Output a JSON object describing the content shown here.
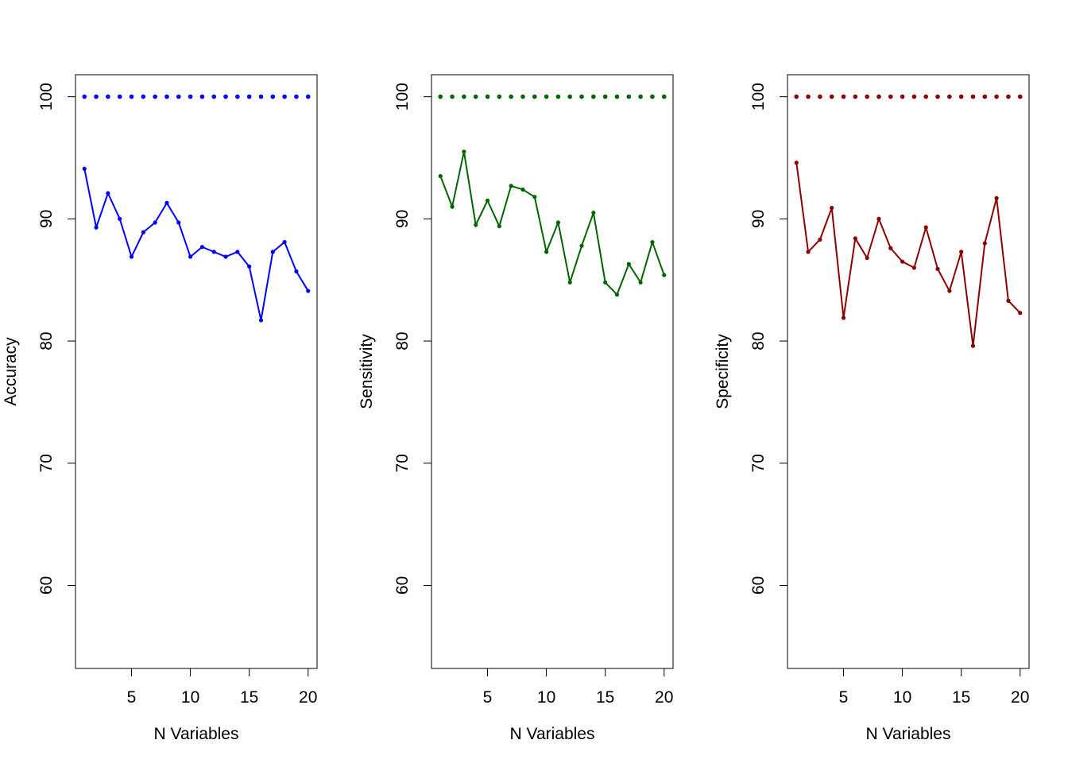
{
  "chart_data": [
    {
      "type": "line",
      "xlabel": "N Variables",
      "ylabel": "Accuracy",
      "color": "#0000ff",
      "x": [
        1,
        2,
        3,
        4,
        5,
        6,
        7,
        8,
        9,
        10,
        11,
        12,
        13,
        14,
        15,
        16,
        17,
        18,
        19,
        20
      ],
      "series": [
        {
          "style": "points",
          "values": [
            100,
            100,
            100,
            100,
            100,
            100,
            100,
            100,
            100,
            100,
            100,
            100,
            100,
            100,
            100,
            100,
            100,
            100,
            100,
            100
          ]
        },
        {
          "style": "line-points",
          "values": [
            94.1,
            89.3,
            92.1,
            90.0,
            86.9,
            88.9,
            89.7,
            91.3,
            89.7,
            86.9,
            87.7,
            87.3,
            86.9,
            87.3,
            86.1,
            81.7,
            87.3,
            88.1,
            85.7,
            84.1
          ]
        }
      ],
      "xticks": [
        5,
        10,
        15,
        20
      ],
      "yticks": [
        60,
        70,
        80,
        90,
        100
      ],
      "xlim": [
        0.24,
        20.76
      ],
      "ylim": [
        53.2,
        101.8
      ]
    },
    {
      "type": "line",
      "xlabel": "N Variables",
      "ylabel": "Sensitivity",
      "color": "#006400",
      "x": [
        1,
        2,
        3,
        4,
        5,
        6,
        7,
        8,
        9,
        10,
        11,
        12,
        13,
        14,
        15,
        16,
        17,
        18,
        19,
        20
      ],
      "series": [
        {
          "style": "points",
          "values": [
            100,
            100,
            100,
            100,
            100,
            100,
            100,
            100,
            100,
            100,
            100,
            100,
            100,
            100,
            100,
            100,
            100,
            100,
            100,
            100
          ]
        },
        {
          "style": "line-points",
          "values": [
            93.5,
            91.0,
            95.5,
            89.5,
            91.5,
            89.4,
            92.7,
            92.4,
            91.8,
            87.3,
            89.7,
            84.8,
            87.8,
            90.5,
            84.8,
            83.8,
            86.3,
            84.8,
            88.1,
            85.4
          ]
        }
      ],
      "xticks": [
        5,
        10,
        15,
        20
      ],
      "yticks": [
        60,
        70,
        80,
        90,
        100
      ],
      "xlim": [
        0.24,
        20.76
      ],
      "ylim": [
        53.2,
        101.8
      ]
    },
    {
      "type": "line",
      "xlabel": "N Variables",
      "ylabel": "Specificity",
      "color": "#8b0000",
      "x": [
        1,
        2,
        3,
        4,
        5,
        6,
        7,
        8,
        9,
        10,
        11,
        12,
        13,
        14,
        15,
        16,
        17,
        18,
        19,
        20
      ],
      "series": [
        {
          "style": "points",
          "values": [
            100,
            100,
            100,
            100,
            100,
            100,
            100,
            100,
            100,
            100,
            100,
            100,
            100,
            100,
            100,
            100,
            100,
            100,
            100,
            100
          ]
        },
        {
          "style": "line-points",
          "values": [
            94.6,
            87.3,
            88.3,
            90.9,
            81.9,
            88.4,
            86.8,
            90.0,
            87.6,
            86.5,
            86.0,
            89.3,
            85.9,
            84.1,
            87.3,
            79.6,
            88.0,
            91.7,
            83.3,
            82.3
          ]
        }
      ],
      "xticks": [
        5,
        10,
        15,
        20
      ],
      "yticks": [
        60,
        70,
        80,
        90,
        100
      ],
      "xlim": [
        0.24,
        20.76
      ],
      "ylim": [
        53.2,
        101.8
      ]
    }
  ]
}
